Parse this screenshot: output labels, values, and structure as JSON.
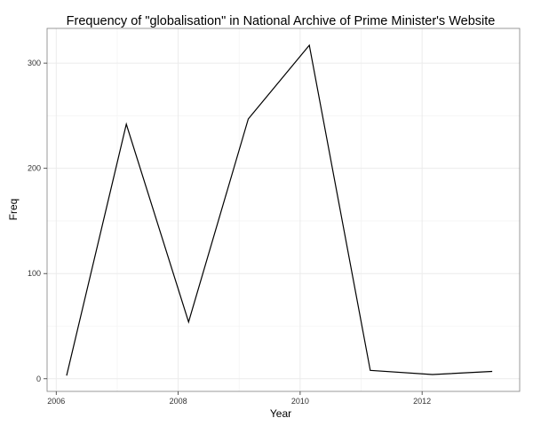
{
  "chart_data": {
    "type": "line",
    "title": "Frequency of \"globalisation\" in National Archive of Prime Minister's Website",
    "xlabel": "Year",
    "ylabel": "Freq",
    "xlim": [
      2005.85,
      2013.6
    ],
    "ylim": [
      -12,
      333
    ],
    "x_ticks": [
      2006,
      2008,
      2010,
      2012
    ],
    "y_ticks": [
      0,
      100,
      200,
      300
    ],
    "grid": true,
    "legend": "none",
    "line_color": "#000000",
    "series": [
      {
        "x": [
          2006.17,
          2007.15,
          2008.17,
          2009.15,
          2010.15,
          2011.15,
          2012.17,
          2013.15
        ],
        "values": [
          3,
          242,
          54,
          247,
          317,
          8,
          4,
          7
        ]
      }
    ]
  }
}
